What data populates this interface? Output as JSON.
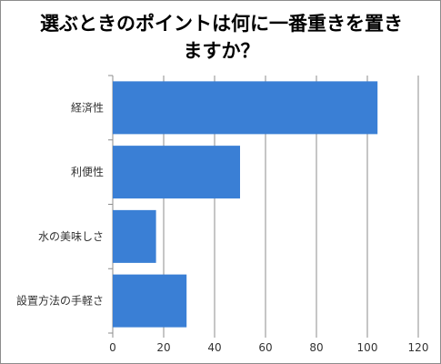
{
  "chart_data": {
    "type": "bar",
    "orientation": "horizontal",
    "title_lines": [
      "選ぶときのポイントは何に一番重きを置き",
      "ますか？"
    ],
    "categories": [
      "経済性",
      "利便性",
      "水の美味しさ",
      "設置方法の手軽さ"
    ],
    "values": [
      104,
      50,
      17,
      29
    ],
    "xlim": [
      0,
      120
    ],
    "xticks": [
      "0",
      "20",
      "40",
      "60",
      "80",
      "100",
      "120"
    ],
    "grid": true,
    "legend": "none",
    "bar_color": "#3a7fd5"
  }
}
